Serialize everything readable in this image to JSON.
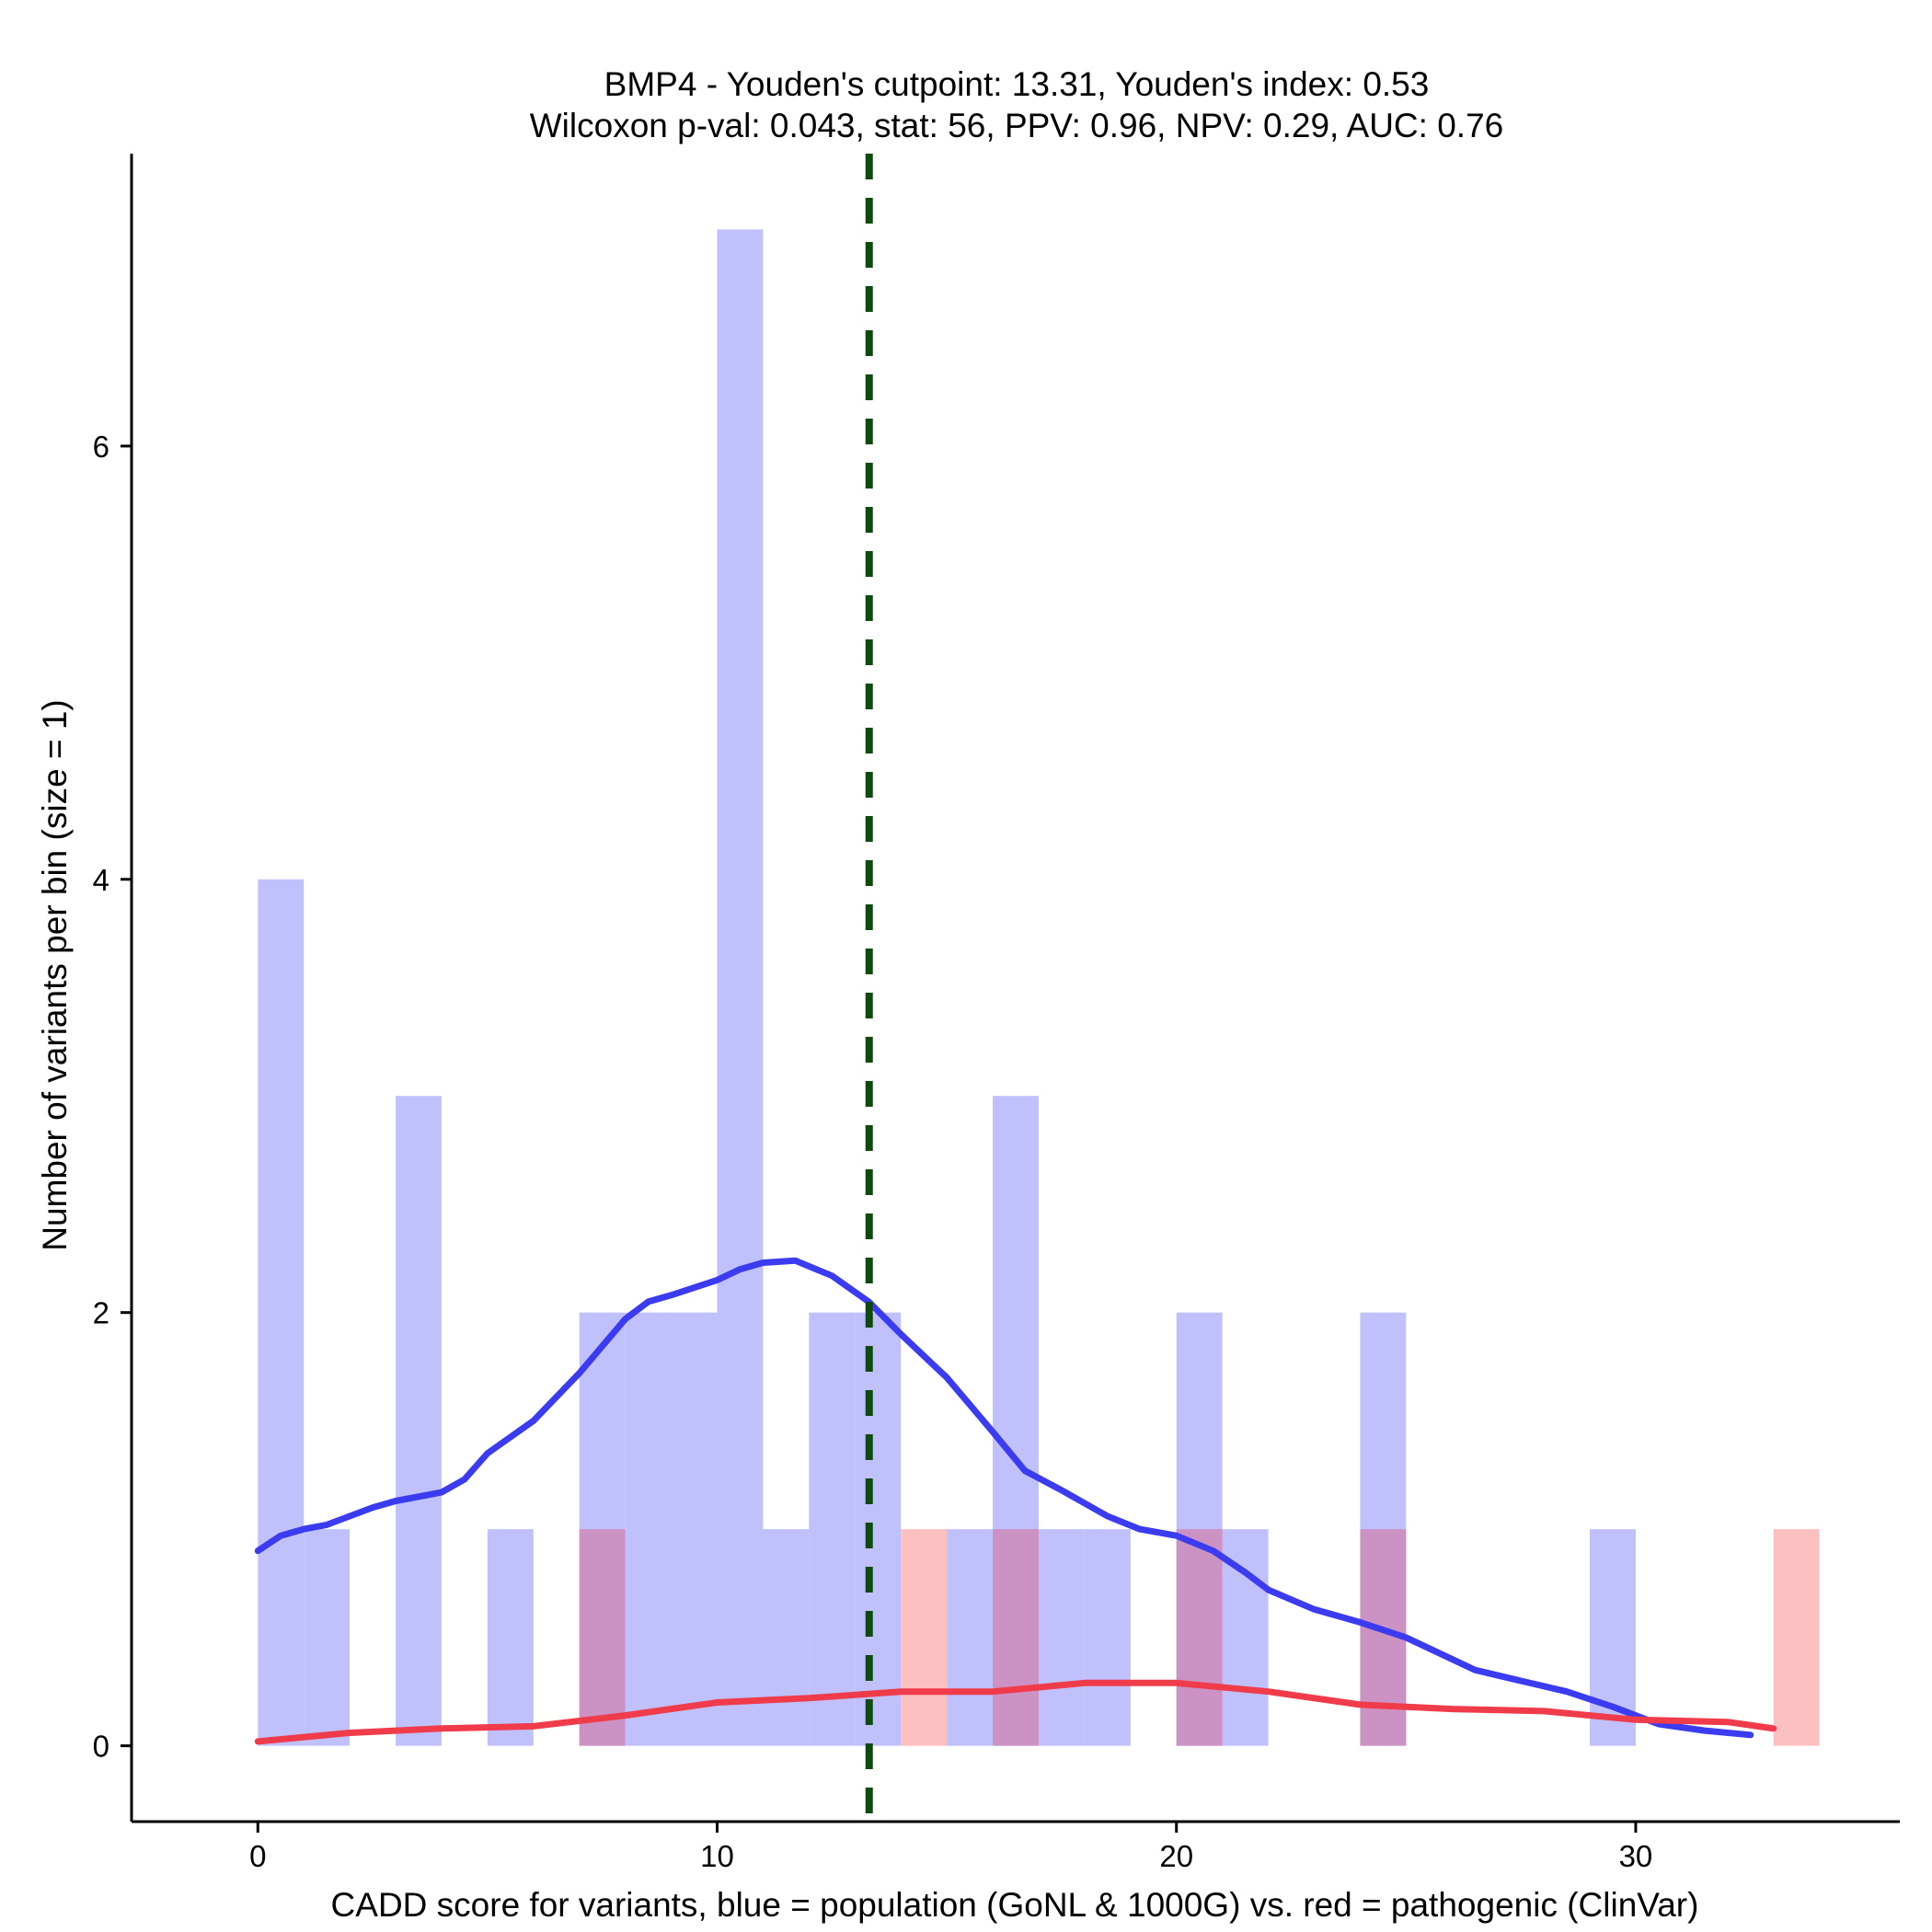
{
  "chart_data": {
    "type": "histogram",
    "title_line1": "BMP4 - Youden's cutpoint: 13.31, Youden's index: 0.53",
    "title_line2": "Wilcoxon p-val: 0.043, stat: 56, PPV: 0.96, NPV: 0.29, AUC: 0.76",
    "xlabel": "CADD score for variants, blue = population (GoNL & 1000G) vs. red = pathogenic (ClinVar)",
    "ylabel": "Number of variants per bin (size = 1)",
    "xlim": [
      -2.75,
      35.75
    ],
    "ylim": [
      -0.35,
      7.35
    ],
    "xticks": [
      0,
      10,
      20,
      30
    ],
    "yticks": [
      0,
      2,
      4,
      6
    ],
    "bin_width": 1,
    "cutpoint": 13.31,
    "colors": {
      "population_bar": "#c0c0fc",
      "pathogenic_bar": "#fcc0c0",
      "overlap_bar": "#cc92c4",
      "population_line": "#3b3bef",
      "pathogenic_line": "#ef3b4a",
      "cutpoint_line": "#0d4a0d"
    },
    "series": [
      {
        "name": "population (GoNL & 1000G)",
        "bins": [
          {
            "start": 0,
            "count": 4
          },
          {
            "start": 1,
            "count": 1
          },
          {
            "start": 3,
            "count": 3
          },
          {
            "start": 5,
            "count": 1
          },
          {
            "start": 7,
            "count": 2
          },
          {
            "start": 8,
            "count": 2
          },
          {
            "start": 9,
            "count": 2
          },
          {
            "start": 10,
            "count": 7
          },
          {
            "start": 11,
            "count": 1
          },
          {
            "start": 12,
            "count": 2
          },
          {
            "start": 13,
            "count": 2
          },
          {
            "start": 15,
            "count": 1
          },
          {
            "start": 16,
            "count": 3
          },
          {
            "start": 17,
            "count": 1
          },
          {
            "start": 18,
            "count": 1
          },
          {
            "start": 20,
            "count": 2
          },
          {
            "start": 21,
            "count": 1
          },
          {
            "start": 24,
            "count": 2
          },
          {
            "start": 29,
            "count": 1
          }
        ],
        "density_curve": [
          [
            0,
            0.9
          ],
          [
            0.5,
            0.97
          ],
          [
            1,
            1.0
          ],
          [
            1.5,
            1.02
          ],
          [
            2.5,
            1.1
          ],
          [
            3,
            1.13
          ],
          [
            4,
            1.17
          ],
          [
            4.5,
            1.23
          ],
          [
            5,
            1.35
          ],
          [
            6,
            1.5
          ],
          [
            7,
            1.72
          ],
          [
            8,
            1.97
          ],
          [
            8.5,
            2.05
          ],
          [
            9,
            2.08
          ],
          [
            10,
            2.15
          ],
          [
            10.5,
            2.2
          ],
          [
            11,
            2.23
          ],
          [
            11.7,
            2.24
          ],
          [
            12.5,
            2.17
          ],
          [
            13.3,
            2.05
          ],
          [
            14,
            1.9
          ],
          [
            15,
            1.7
          ],
          [
            16,
            1.45
          ],
          [
            16.7,
            1.27
          ],
          [
            17.5,
            1.18
          ],
          [
            18.5,
            1.06
          ],
          [
            19.2,
            1.0
          ],
          [
            20,
            0.97
          ],
          [
            20.8,
            0.9
          ],
          [
            21.5,
            0.8
          ],
          [
            22,
            0.72
          ],
          [
            23,
            0.63
          ],
          [
            24,
            0.57
          ],
          [
            25,
            0.5
          ],
          [
            26,
            0.4
          ],
          [
            26.5,
            0.35
          ],
          [
            27.5,
            0.3
          ],
          [
            28.5,
            0.25
          ],
          [
            29.5,
            0.18
          ],
          [
            30.5,
            0.1
          ],
          [
            31.5,
            0.07
          ],
          [
            32.5,
            0.05
          ]
        ]
      },
      {
        "name": "pathogenic (ClinVar)",
        "bins": [
          {
            "start": 7,
            "count": 1
          },
          {
            "start": 14,
            "count": 1
          },
          {
            "start": 16,
            "count": 1
          },
          {
            "start": 20,
            "count": 1
          },
          {
            "start": 24,
            "count": 1
          },
          {
            "start": 33,
            "count": 1
          }
        ],
        "density_curve": [
          [
            0,
            0.02
          ],
          [
            2,
            0.06
          ],
          [
            4,
            0.08
          ],
          [
            6,
            0.09
          ],
          [
            8,
            0.14
          ],
          [
            10,
            0.2
          ],
          [
            12,
            0.22
          ],
          [
            14,
            0.25
          ],
          [
            16,
            0.25
          ],
          [
            18,
            0.29
          ],
          [
            20,
            0.29
          ],
          [
            22,
            0.25
          ],
          [
            24,
            0.19
          ],
          [
            26,
            0.17
          ],
          [
            28,
            0.16
          ],
          [
            30,
            0.12
          ],
          [
            32,
            0.11
          ],
          [
            33,
            0.08
          ]
        ]
      }
    ]
  }
}
